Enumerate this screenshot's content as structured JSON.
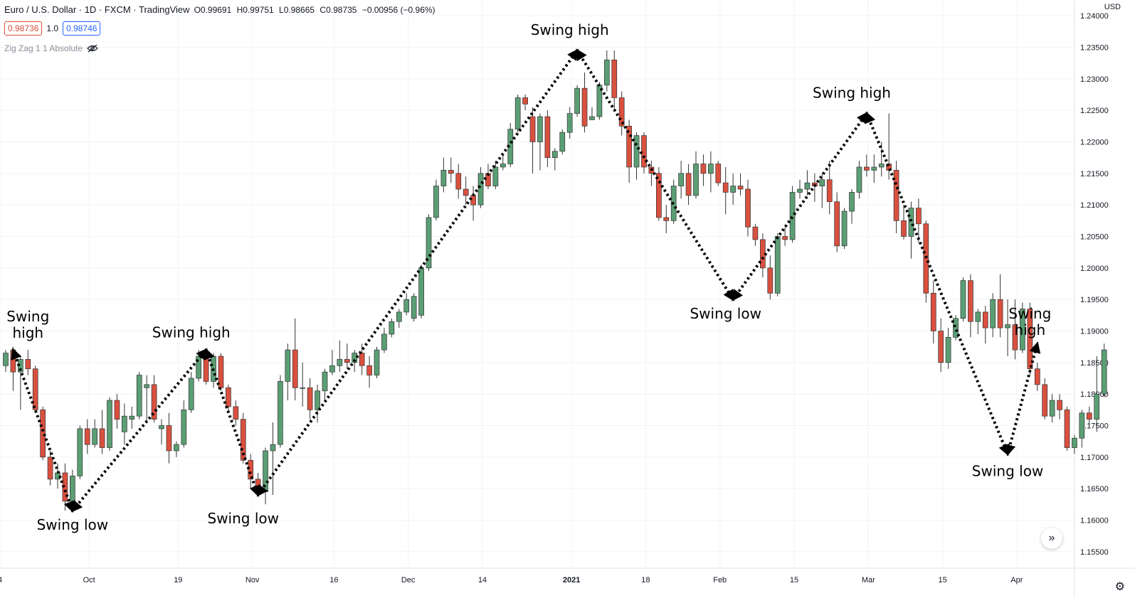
{
  "header": {
    "symbol": "Euro / U.S. Dollar · 1D · FXCM · TradingView",
    "ohlc": {
      "o": "O0.99691",
      "h": "H0.99751",
      "l": "L0.98665",
      "c": "C0.98735",
      "chg": "−0.00956 (−0.96%)"
    },
    "bid": "0.98736",
    "spread": "1.0",
    "ask": "0.98746",
    "indicator": "Zig Zag 1 1 Absolute"
  },
  "currency": "USD",
  "colors": {
    "up": "#5b9e74",
    "down": "#d9503f",
    "grid": "#f0f3fa",
    "text": "#131722"
  },
  "chart_data": {
    "type": "candlestick",
    "y_axis_ticks": [
      "1.24000",
      "1.23500",
      "1.23000",
      "1.22500",
      "1.22000",
      "1.21500",
      "1.21000",
      "1.20500",
      "1.20000",
      "1.19500",
      "1.19000",
      "1.18500",
      "1.18000",
      "1.17500",
      "1.17000",
      "1.16500",
      "1.16000",
      "1.15500"
    ],
    "ylim": [
      1.1525,
      1.2425
    ],
    "x_axis_ticks": [
      "4",
      "Oct",
      "19",
      "Nov",
      "16",
      "Dec",
      "14",
      "2021",
      "18",
      "Feb",
      "15",
      "Mar",
      "15",
      "Apr"
    ],
    "candles": [
      [
        1.1845,
        1.187,
        1.1835,
        1.1865
      ],
      [
        1.187,
        1.1875,
        1.1805,
        1.1835
      ],
      [
        1.1835,
        1.186,
        1.1775,
        1.1855
      ],
      [
        1.1855,
        1.187,
        1.183,
        1.184
      ],
      [
        1.184,
        1.1845,
        1.177,
        1.1775
      ],
      [
        1.1775,
        1.178,
        1.1695,
        1.17
      ],
      [
        1.17,
        1.171,
        1.1655,
        1.1665
      ],
      [
        1.1665,
        1.169,
        1.165,
        1.1675
      ],
      [
        1.1675,
        1.169,
        1.1615,
        1.163
      ],
      [
        1.163,
        1.168,
        1.162,
        1.167
      ],
      [
        1.167,
        1.175,
        1.1665,
        1.1745
      ],
      [
        1.1745,
        1.176,
        1.1705,
        1.172
      ],
      [
        1.172,
        1.176,
        1.1715,
        1.1745
      ],
      [
        1.1745,
        1.1775,
        1.1705,
        1.1715
      ],
      [
        1.1715,
        1.1795,
        1.171,
        1.179
      ],
      [
        1.179,
        1.18,
        1.1745,
        1.176
      ],
      [
        1.174,
        1.1785,
        1.172,
        1.1765
      ],
      [
        1.176,
        1.178,
        1.1745,
        1.1765
      ],
      [
        1.1765,
        1.1835,
        1.176,
        1.183
      ],
      [
        1.181,
        1.183,
        1.1755,
        1.1815
      ],
      [
        1.1815,
        1.183,
        1.1755,
        1.176
      ],
      [
        1.1745,
        1.176,
        1.172,
        1.175
      ],
      [
        1.175,
        1.177,
        1.169,
        1.171
      ],
      [
        1.171,
        1.1725,
        1.17,
        1.172
      ],
      [
        1.172,
        1.179,
        1.1715,
        1.1775
      ],
      [
        1.1775,
        1.1835,
        1.177,
        1.1825
      ],
      [
        1.1825,
        1.187,
        1.182,
        1.186
      ],
      [
        1.186,
        1.187,
        1.1815,
        1.182
      ],
      [
        1.182,
        1.1865,
        1.181,
        1.186
      ],
      [
        1.186,
        1.1865,
        1.1805,
        1.181
      ],
      [
        1.181,
        1.1815,
        1.177,
        1.178
      ],
      [
        1.178,
        1.179,
        1.175,
        1.176
      ],
      [
        1.176,
        1.177,
        1.169,
        1.1695
      ],
      [
        1.1695,
        1.1705,
        1.165,
        1.1665
      ],
      [
        1.1665,
        1.1675,
        1.164,
        1.1645
      ],
      [
        1.1645,
        1.1715,
        1.1625,
        1.171
      ],
      [
        1.171,
        1.1755,
        1.164,
        1.172
      ],
      [
        1.172,
        1.183,
        1.1715,
        1.182
      ],
      [
        1.182,
        1.188,
        1.179,
        1.187
      ],
      [
        1.187,
        1.192,
        1.179,
        1.181
      ],
      [
        1.181,
        1.185,
        1.178,
        1.181
      ],
      [
        1.181,
        1.1825,
        1.176,
        1.1775
      ],
      [
        1.1775,
        1.1815,
        1.1755,
        1.1805
      ],
      [
        1.1805,
        1.184,
        1.179,
        1.1835
      ],
      [
        1.1835,
        1.187,
        1.183,
        1.1845
      ],
      [
        1.1845,
        1.1885,
        1.1835,
        1.1855
      ],
      [
        1.1855,
        1.188,
        1.184,
        1.185
      ],
      [
        1.185,
        1.187,
        1.1835,
        1.1865
      ],
      [
        1.1865,
        1.188,
        1.183,
        1.1845
      ],
      [
        1.1845,
        1.186,
        1.181,
        1.183
      ],
      [
        1.183,
        1.1875,
        1.1825,
        1.187
      ],
      [
        1.187,
        1.1905,
        1.1865,
        1.1895
      ],
      [
        1.1895,
        1.192,
        1.189,
        1.1915
      ],
      [
        1.1915,
        1.1935,
        1.1905,
        1.193
      ],
      [
        1.193,
        1.196,
        1.1925,
        1.195
      ],
      [
        1.192,
        1.196,
        1.1915,
        1.1955
      ],
      [
        1.1925,
        1.2005,
        1.192,
        1.2
      ],
      [
        1.2,
        1.2085,
        1.1995,
        1.208
      ],
      [
        1.208,
        1.214,
        1.2075,
        1.213
      ],
      [
        1.213,
        1.2175,
        1.212,
        1.2155
      ],
      [
        1.2155,
        1.2175,
        1.2135,
        1.215
      ],
      [
        1.215,
        1.2165,
        1.211,
        1.2125
      ],
      [
        1.2125,
        1.2145,
        1.21,
        1.2115
      ],
      [
        1.2115,
        1.213,
        1.2075,
        1.21
      ],
      [
        1.21,
        1.216,
        1.2095,
        1.215
      ],
      [
        1.215,
        1.2165,
        1.2125,
        1.213
      ],
      [
        1.213,
        1.217,
        1.2125,
        1.216
      ],
      [
        1.216,
        1.218,
        1.2155,
        1.2165
      ],
      [
        1.2165,
        1.223,
        1.216,
        1.222
      ],
      [
        1.222,
        1.2275,
        1.2215,
        1.227
      ],
      [
        1.227,
        1.2275,
        1.225,
        1.226
      ],
      [
        1.224,
        1.2255,
        1.215,
        1.22
      ],
      [
        1.22,
        1.2245,
        1.2155,
        1.224
      ],
      [
        1.224,
        1.225,
        1.216,
        1.2175
      ],
      [
        1.2175,
        1.219,
        1.2155,
        1.2185
      ],
      [
        1.2185,
        1.222,
        1.218,
        1.2215
      ],
      [
        1.2215,
        1.2255,
        1.2205,
        1.2245
      ],
      [
        1.2245,
        1.229,
        1.224,
        1.2285
      ],
      [
        1.2285,
        1.231,
        1.2215,
        1.2225
      ],
      [
        1.2235,
        1.2255,
        1.2235,
        1.224
      ],
      [
        1.224,
        1.2295,
        1.2235,
        1.229
      ],
      [
        1.229,
        1.2345,
        1.228,
        1.233
      ],
      [
        1.233,
        1.2345,
        1.225,
        1.227
      ],
      [
        1.227,
        1.228,
        1.221,
        1.2225
      ],
      [
        1.2225,
        1.2235,
        1.2135,
        1.216
      ],
      [
        1.216,
        1.2215,
        1.214,
        1.221
      ],
      [
        1.221,
        1.2215,
        1.215,
        1.216
      ],
      [
        1.216,
        1.217,
        1.213,
        1.215
      ],
      [
        1.215,
        1.216,
        1.2075,
        1.208
      ],
      [
        1.208,
        1.21,
        1.2055,
        1.2075
      ],
      [
        1.2075,
        1.214,
        1.207,
        1.213
      ],
      [
        1.213,
        1.217,
        1.211,
        1.215
      ],
      [
        1.215,
        1.2165,
        1.21,
        1.2115
      ],
      [
        1.2115,
        1.2185,
        1.211,
        1.2165
      ],
      [
        1.2165,
        1.218,
        1.213,
        1.215
      ],
      [
        1.215,
        1.2185,
        1.212,
        1.2165
      ],
      [
        1.2165,
        1.217,
        1.213,
        1.2135
      ],
      [
        1.2135,
        1.216,
        1.2085,
        1.212
      ],
      [
        1.212,
        1.215,
        1.21,
        1.213
      ],
      [
        1.213,
        1.215,
        1.2115,
        1.2125
      ],
      [
        1.2125,
        1.214,
        1.205,
        1.2065
      ],
      [
        1.2065,
        1.207,
        1.2035,
        1.2045
      ],
      [
        1.2045,
        1.2055,
        1.1985,
        1.2
      ],
      [
        1.2,
        1.202,
        1.195,
        1.196
      ],
      [
        1.196,
        1.2055,
        1.1955,
        1.205
      ],
      [
        1.205,
        1.2065,
        1.2035,
        1.2045
      ],
      [
        1.2045,
        1.213,
        1.204,
        1.212
      ],
      [
        1.212,
        1.214,
        1.211,
        1.2125
      ],
      [
        1.2125,
        1.2155,
        1.2115,
        1.2135
      ],
      [
        1.2135,
        1.215,
        1.2105,
        1.213
      ],
      [
        1.213,
        1.215,
        1.2095,
        1.214
      ],
      [
        1.214,
        1.217,
        1.2085,
        1.2105
      ],
      [
        1.2105,
        1.212,
        1.2025,
        1.2035
      ],
      [
        1.2035,
        1.2095,
        1.203,
        1.209
      ],
      [
        1.209,
        1.2125,
        1.207,
        1.212
      ],
      [
        1.212,
        1.217,
        1.211,
        1.216
      ],
      [
        1.216,
        1.218,
        1.2145,
        1.2155
      ],
      [
        1.2155,
        1.218,
        1.2135,
        1.216
      ],
      [
        1.216,
        1.22,
        1.2145,
        1.2165
      ],
      [
        1.2165,
        1.2245,
        1.214,
        1.2155
      ],
      [
        1.2155,
        1.217,
        1.2055,
        1.2075
      ],
      [
        1.2075,
        1.21,
        1.2045,
        1.205
      ],
      [
        1.205,
        1.2105,
        1.2015,
        1.2095
      ],
      [
        1.2095,
        1.211,
        1.204,
        1.207
      ],
      [
        1.207,
        1.2075,
        1.1945,
        1.196
      ],
      [
        1.196,
        1.198,
        1.188,
        1.19
      ],
      [
        1.19,
        1.192,
        1.1835,
        1.185
      ],
      [
        1.185,
        1.1905,
        1.184,
        1.189
      ],
      [
        1.189,
        1.1925,
        1.1885,
        1.192
      ],
      [
        1.192,
        1.1985,
        1.1915,
        1.198
      ],
      [
        1.198,
        1.199,
        1.189,
        1.1915
      ],
      [
        1.1915,
        1.1935,
        1.1895,
        1.193
      ],
      [
        1.193,
        1.194,
        1.188,
        1.1905
      ],
      [
        1.1905,
        1.196,
        1.189,
        1.195
      ],
      [
        1.195,
        1.199,
        1.189,
        1.1905
      ],
      [
        1.1905,
        1.195,
        1.186,
        1.191
      ],
      [
        1.191,
        1.195,
        1.1855,
        1.187
      ],
      [
        1.187,
        1.1945,
        1.1865,
        1.1935
      ],
      [
        1.1935,
        1.1945,
        1.183,
        1.184
      ],
      [
        1.184,
        1.185,
        1.1805,
        1.1815
      ],
      [
        1.1815,
        1.1825,
        1.176,
        1.1765
      ],
      [
        1.1765,
        1.18,
        1.1755,
        1.179
      ],
      [
        1.179,
        1.18,
        1.176,
        1.1775
      ],
      [
        1.1775,
        1.178,
        1.171,
        1.1715
      ],
      [
        1.1715,
        1.1735,
        1.1705,
        1.173
      ],
      [
        1.173,
        1.1775,
        1.1715,
        1.177
      ],
      [
        1.177,
        1.178,
        1.175,
        1.176
      ],
      [
        1.176,
        1.186,
        1.174,
        1.18
      ],
      [
        1.18,
        1.188,
        1.1795,
        1.187
      ]
    ],
    "zigzag": [
      [
        1,
        1.187
      ],
      [
        9,
        1.1615
      ],
      [
        27,
        1.187
      ],
      [
        34,
        1.164
      ],
      [
        77,
        1.2345
      ],
      [
        98,
        1.195
      ],
      [
        116,
        1.2245
      ],
      [
        135,
        1.1705
      ],
      [
        139,
        1.188
      ]
    ],
    "annotations": [
      {
        "text": "Swing\nhigh",
        "x": 3,
        "y": 1.1915
      },
      {
        "text": "Swing low",
        "x": 9,
        "y": 1.1585
      },
      {
        "text": "Swing high",
        "x": 25,
        "y": 1.189
      },
      {
        "text": "Swing low",
        "x": 32,
        "y": 1.1595
      },
      {
        "text": "Swing high",
        "x": 76,
        "y": 1.237
      },
      {
        "text": "Swing low",
        "x": 97,
        "y": 1.192
      },
      {
        "text": "Swing high",
        "x": 114,
        "y": 1.227
      },
      {
        "text": "Swing low",
        "x": 135,
        "y": 1.167
      },
      {
        "text": "Swing\nhigh",
        "x": 138,
        "y": 1.192
      }
    ]
  }
}
